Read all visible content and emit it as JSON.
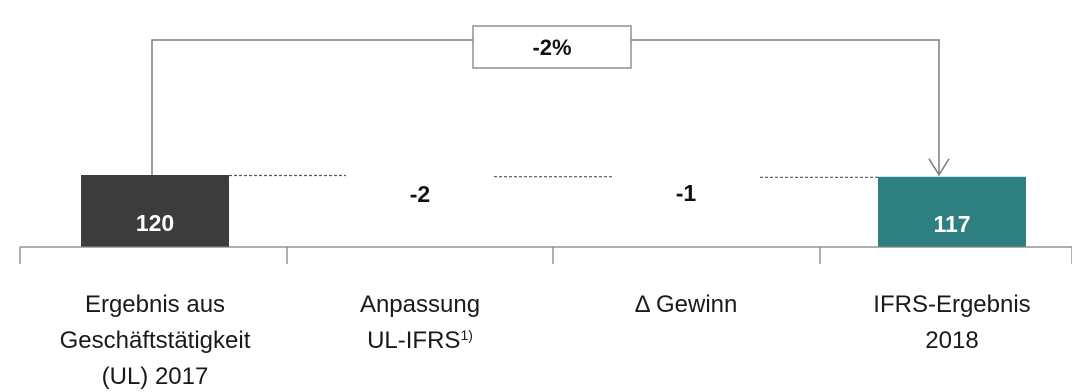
{
  "chart_data": {
    "type": "waterfall",
    "categories": [
      [
        "Ergebnis aus",
        "Geschäftstätigkeit",
        "(UL) 2017"
      ],
      [
        "Anpassung",
        "UL-IFRS"
      ],
      [
        "Δ Gewinn"
      ],
      [
        "IFRS-Ergebnis",
        "2018"
      ]
    ],
    "category_footnotes": [
      "",
      "1)",
      "",
      ""
    ],
    "values": [
      120,
      -2,
      -1,
      117
    ],
    "value_labels": [
      "120",
      "-2",
      "-1",
      "117"
    ],
    "bar_kinds": [
      "total",
      "delta",
      "delta",
      "total"
    ],
    "change_label": "-2%",
    "colors": {
      "start_total": "#3c3c3c",
      "end_total": "#2e7f80",
      "delta_fill": "#ffffff",
      "total_text": "#ffffff",
      "delta_text": "#111111",
      "connector": "#555555",
      "axis": "#7f7f7f",
      "bracket": "#7f7f7f"
    }
  }
}
